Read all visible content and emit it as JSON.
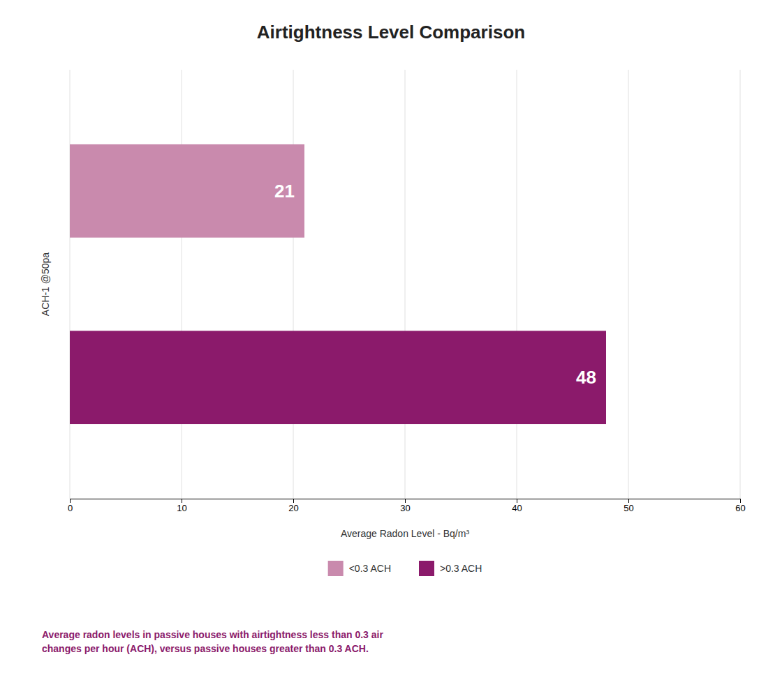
{
  "chart_data": {
    "type": "bar",
    "orientation": "horizontal",
    "title": "Airtightness Level Comparison",
    "categories": [
      "<0.3 ACH",
      ">0.3 ACH"
    ],
    "values": [
      21,
      48
    ],
    "colors": [
      "#C98AAD",
      "#8B1A6B"
    ],
    "xlabel": "Average Radon Level - Bq/m³",
    "ylabel": "ACH-1 @50pa",
    "xlim": [
      0,
      60
    ],
    "xticks": [
      0,
      10,
      20,
      30,
      40,
      50,
      60
    ],
    "grid": true,
    "data_labels": true,
    "tick_labels": "x",
    "legend": "bottom",
    "annotations": [
      "Average radon levels in passive houses with airtightness less than 0.3 air\nchanges per hour (ACH), versus passive houses greater than 0.3 ACH."
    ]
  }
}
